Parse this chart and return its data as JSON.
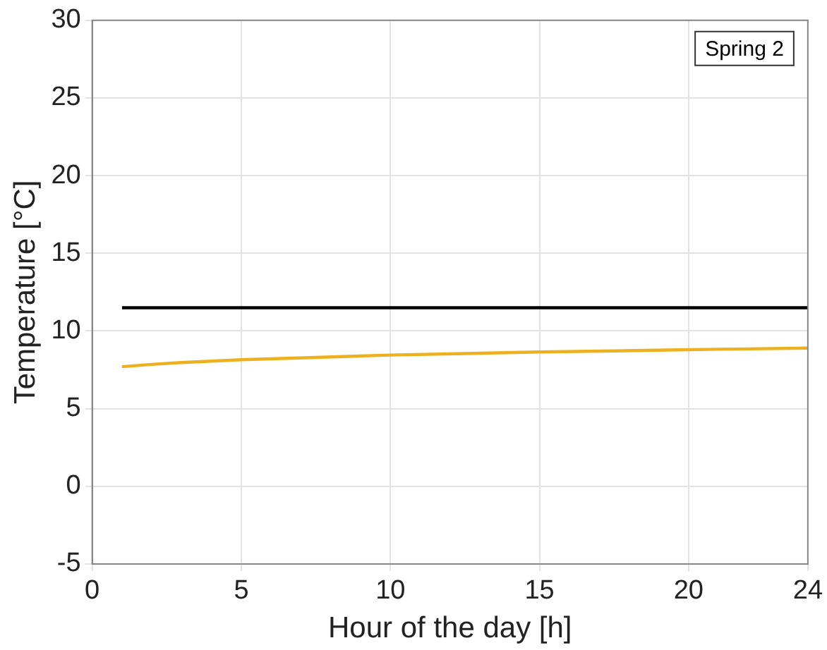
{
  "chart_data": {
    "type": "line",
    "xlabel": "Hour of the day [h]",
    "ylabel": "Temperature [°C]",
    "annotations": [
      "Spring 2"
    ],
    "xlim": [
      0,
      24
    ],
    "xticks": [
      0,
      5,
      10,
      15,
      20,
      24
    ],
    "ylim": [
      -5,
      30
    ],
    "yticks": [
      -5,
      0,
      5,
      10,
      15,
      20,
      25,
      30
    ],
    "grid": true,
    "marker": "none",
    "line_style": "solid",
    "series": [
      {
        "color": "#000000",
        "x": [
          1,
          24
        ],
        "values": [
          11.5,
          11.5
        ]
      },
      {
        "color": "#edb120",
        "x": [
          1,
          2,
          3,
          5,
          7.5,
          10,
          12.5,
          15,
          17.5,
          20,
          22,
          24
        ],
        "values": [
          7.7,
          7.85,
          7.97,
          8.15,
          8.3,
          8.45,
          8.55,
          8.65,
          8.72,
          8.8,
          8.85,
          8.9
        ]
      }
    ]
  }
}
